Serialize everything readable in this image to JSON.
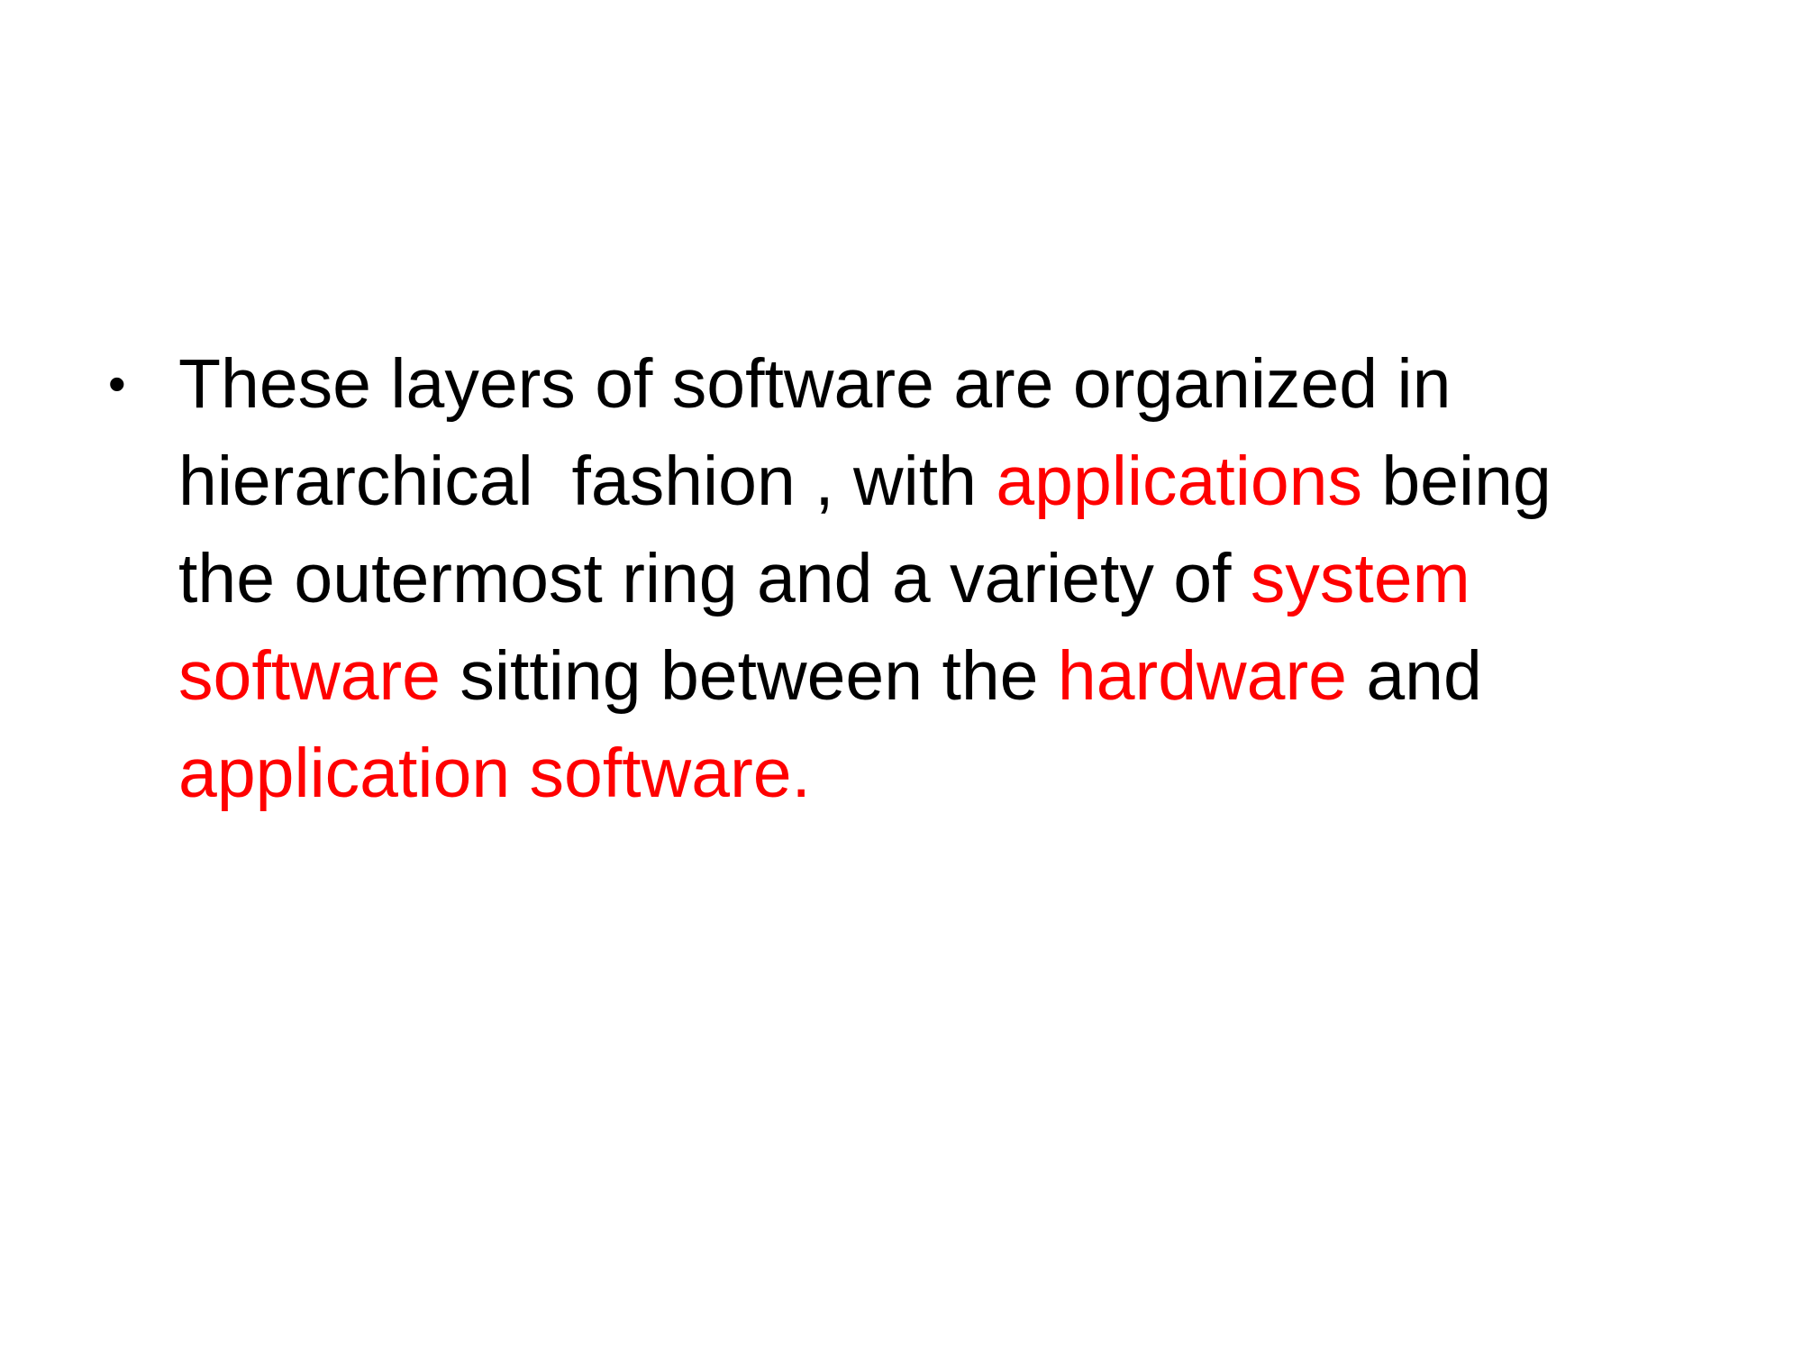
{
  "slide": {
    "bullet_symbol": "•",
    "highlight_color": "#ff0000",
    "text_color": "#000000",
    "bullet": {
      "seg1": "These layers of software are organized in hierarchical  fashion , with ",
      "hl1": "applications",
      "seg2": " being the outermost ring and a variety of ",
      "hl2": "system software",
      "seg3": " sitting between the ",
      "hl3": "hardware",
      "seg4": " and ",
      "hl4": "application software."
    }
  }
}
